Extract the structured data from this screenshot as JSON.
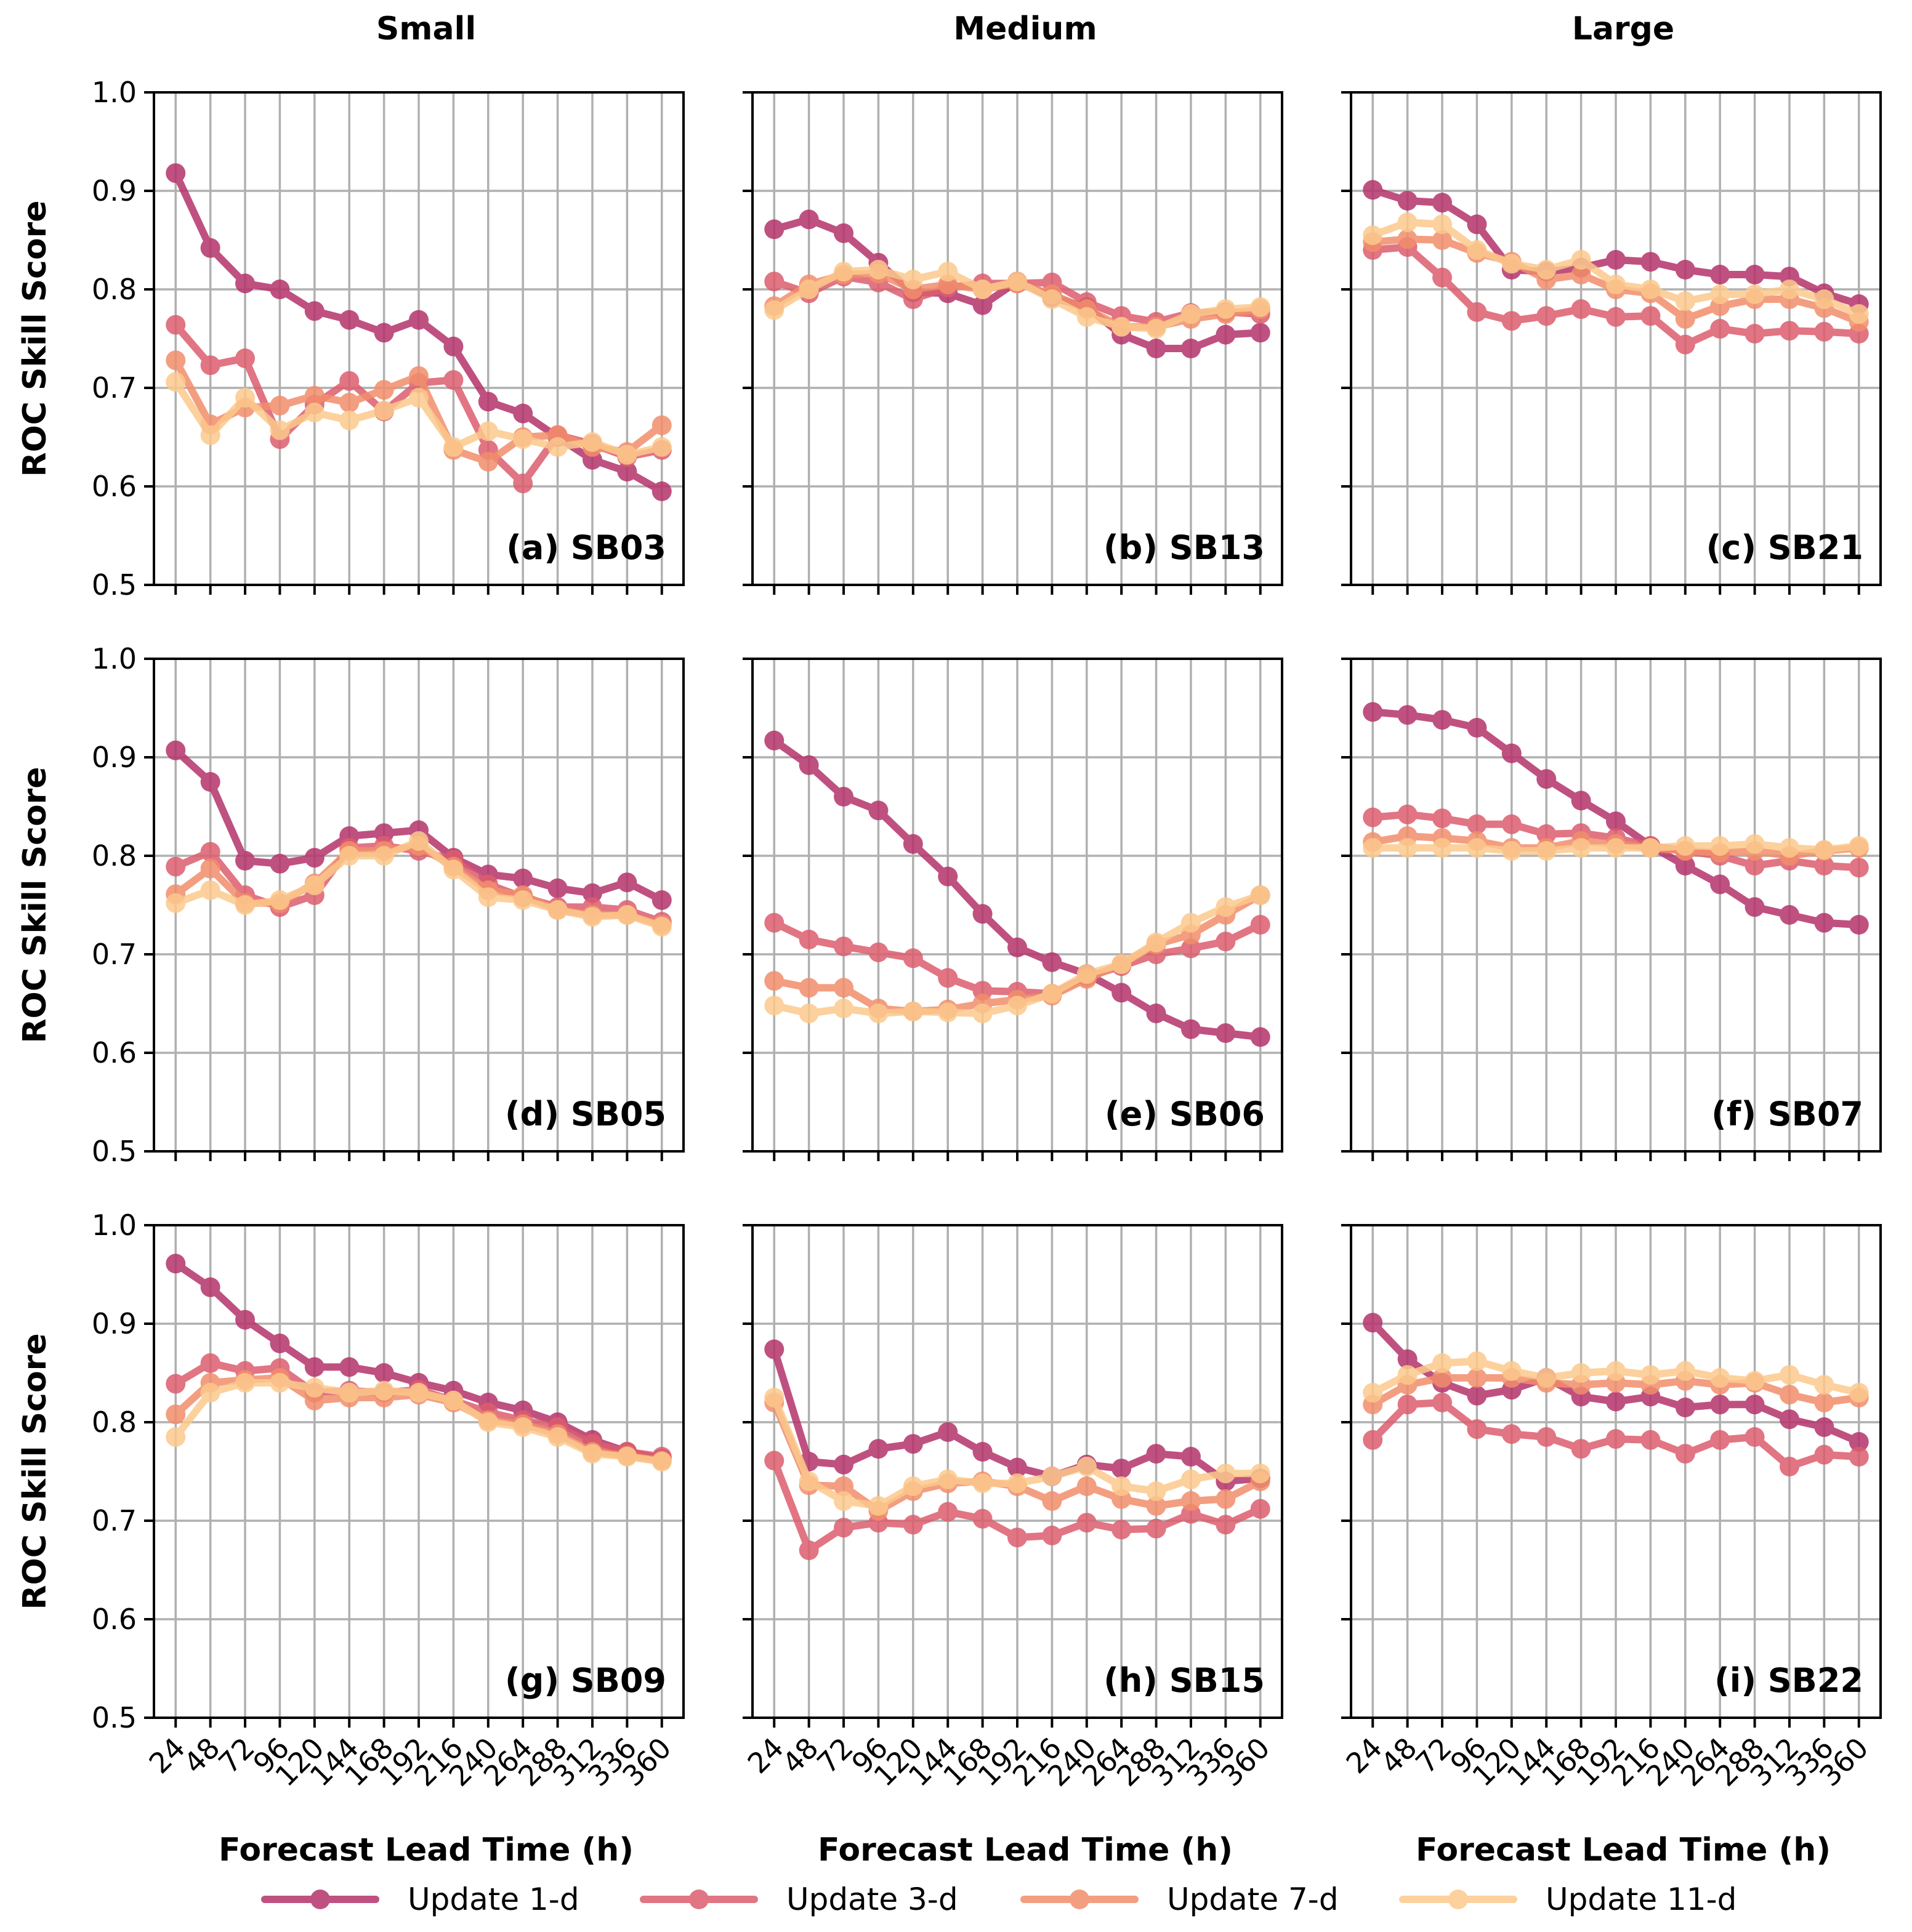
{
  "chart_data": {
    "type": "line",
    "column_titles": [
      "Small",
      "Medium",
      "Large"
    ],
    "xlabel": "Forecast Lead Time (h)",
    "ylabel": "ROC Skill Score",
    "ylim": [
      0.5,
      1.0
    ],
    "yticks": [
      "0.5",
      "0.6",
      "0.7",
      "0.8",
      "0.9",
      "1.0"
    ],
    "x": [
      24,
      48,
      72,
      96,
      120,
      144,
      168,
      192,
      216,
      240,
      264,
      288,
      312,
      336,
      360
    ],
    "grid": true,
    "legend_position": "bottom",
    "series_names": [
      "Update 1-d",
      "Update 3-d",
      "Update 7-d",
      "Update 11-d"
    ],
    "series_colors": [
      "#b5336a",
      "#dc5e6e",
      "#f28e6c",
      "#fcc98c"
    ],
    "panels": [
      {
        "label": "(a) SB03",
        "series": [
          [
            0.918,
            0.842,
            0.806,
            0.8,
            0.778,
            0.769,
            0.756,
            0.769,
            0.742,
            0.686,
            0.674,
            0.65,
            0.627,
            0.615,
            0.595
          ],
          [
            0.764,
            0.723,
            0.73,
            0.648,
            0.683,
            0.707,
            0.676,
            0.705,
            0.708,
            0.637,
            0.603,
            0.652,
            0.643,
            0.63,
            0.637
          ],
          [
            0.728,
            0.663,
            0.68,
            0.682,
            0.692,
            0.685,
            0.698,
            0.712,
            0.637,
            0.625,
            0.65,
            0.652,
            0.64,
            0.635,
            0.662
          ],
          [
            0.706,
            0.652,
            0.69,
            0.657,
            0.675,
            0.667,
            0.677,
            0.69,
            0.64,
            0.656,
            0.648,
            0.64,
            0.645,
            0.632,
            0.64
          ]
        ]
      },
      {
        "label": "(b) SB13",
        "series": [
          [
            0.861,
            0.871,
            0.857,
            0.827,
            0.797,
            0.796,
            0.784,
            0.808,
            0.792,
            0.782,
            0.754,
            0.74,
            0.74,
            0.754,
            0.756
          ],
          [
            0.808,
            0.796,
            0.813,
            0.807,
            0.79,
            0.802,
            0.806,
            0.806,
            0.807,
            0.787,
            0.773,
            0.767,
            0.776,
            0.777,
            0.775
          ],
          [
            0.783,
            0.805,
            0.815,
            0.816,
            0.8,
            0.805,
            0.8,
            0.806,
            0.795,
            0.78,
            0.762,
            0.762,
            0.77,
            0.775,
            0.78
          ],
          [
            0.779,
            0.8,
            0.818,
            0.82,
            0.81,
            0.818,
            0.8,
            0.808,
            0.79,
            0.772,
            0.762,
            0.76,
            0.775,
            0.78,
            0.782
          ]
        ]
      },
      {
        "label": "(c) SB21",
        "series": [
          [
            0.901,
            0.89,
            0.888,
            0.866,
            0.82,
            0.818,
            0.822,
            0.83,
            0.828,
            0.82,
            0.815,
            0.815,
            0.813,
            0.796,
            0.785
          ],
          [
            0.84,
            0.843,
            0.812,
            0.777,
            0.768,
            0.773,
            0.78,
            0.772,
            0.773,
            0.744,
            0.76,
            0.755,
            0.758,
            0.757,
            0.755
          ],
          [
            0.848,
            0.851,
            0.85,
            0.837,
            0.828,
            0.81,
            0.815,
            0.8,
            0.796,
            0.77,
            0.783,
            0.79,
            0.79,
            0.781,
            0.767
          ],
          [
            0.855,
            0.868,
            0.866,
            0.84,
            0.826,
            0.82,
            0.83,
            0.805,
            0.8,
            0.788,
            0.795,
            0.795,
            0.8,
            0.79,
            0.775
          ]
        ]
      },
      {
        "label": "(d) SB05",
        "series": [
          [
            0.907,
            0.875,
            0.795,
            0.792,
            0.798,
            0.82,
            0.823,
            0.826,
            0.798,
            0.781,
            0.777,
            0.767,
            0.762,
            0.773,
            0.755
          ],
          [
            0.789,
            0.804,
            0.76,
            0.748,
            0.76,
            0.808,
            0.81,
            0.805,
            0.796,
            0.771,
            0.758,
            0.748,
            0.748,
            0.745,
            0.733
          ],
          [
            0.761,
            0.787,
            0.752,
            0.752,
            0.772,
            0.805,
            0.805,
            0.81,
            0.789,
            0.765,
            0.76,
            0.745,
            0.74,
            0.74,
            0.73
          ],
          [
            0.752,
            0.765,
            0.75,
            0.755,
            0.77,
            0.8,
            0.8,
            0.815,
            0.786,
            0.758,
            0.755,
            0.745,
            0.738,
            0.74,
            0.728
          ]
        ]
      },
      {
        "label": "(e) SB06",
        "series": [
          [
            0.917,
            0.892,
            0.86,
            0.846,
            0.812,
            0.779,
            0.741,
            0.707,
            0.692,
            0.68,
            0.661,
            0.64,
            0.624,
            0.62,
            0.616
          ],
          [
            0.732,
            0.715,
            0.708,
            0.702,
            0.696,
            0.676,
            0.663,
            0.662,
            0.66,
            0.677,
            0.688,
            0.7,
            0.706,
            0.713,
            0.73
          ],
          [
            0.673,
            0.666,
            0.666,
            0.645,
            0.642,
            0.644,
            0.65,
            0.654,
            0.658,
            0.675,
            0.69,
            0.71,
            0.72,
            0.74,
            0.76
          ],
          [
            0.648,
            0.64,
            0.645,
            0.64,
            0.642,
            0.641,
            0.64,
            0.648,
            0.66,
            0.68,
            0.69,
            0.712,
            0.732,
            0.748,
            0.76
          ]
        ]
      },
      {
        "label": "(f) SB07",
        "series": [
          [
            0.946,
            0.943,
            0.938,
            0.93,
            0.904,
            0.878,
            0.856,
            0.835,
            0.81,
            0.79,
            0.771,
            0.748,
            0.74,
            0.732,
            0.73
          ],
          [
            0.839,
            0.842,
            0.838,
            0.832,
            0.832,
            0.822,
            0.823,
            0.818,
            0.81,
            0.805,
            0.8,
            0.79,
            0.795,
            0.79,
            0.788
          ],
          [
            0.814,
            0.82,
            0.818,
            0.815,
            0.808,
            0.808,
            0.815,
            0.812,
            0.808,
            0.805,
            0.803,
            0.805,
            0.8,
            0.805,
            0.808
          ],
          [
            0.808,
            0.808,
            0.808,
            0.808,
            0.805,
            0.805,
            0.808,
            0.808,
            0.808,
            0.81,
            0.81,
            0.812,
            0.808,
            0.806,
            0.81
          ]
        ]
      },
      {
        "label": "(g) SB09",
        "series": [
          [
            0.961,
            0.937,
            0.904,
            0.88,
            0.856,
            0.856,
            0.85,
            0.84,
            0.832,
            0.82,
            0.812,
            0.8,
            0.782,
            0.77,
            0.763
          ],
          [
            0.839,
            0.86,
            0.852,
            0.855,
            0.83,
            0.832,
            0.83,
            0.833,
            0.822,
            0.81,
            0.802,
            0.795,
            0.778,
            0.77,
            0.765
          ],
          [
            0.808,
            0.84,
            0.843,
            0.845,
            0.822,
            0.825,
            0.825,
            0.828,
            0.82,
            0.802,
            0.798,
            0.788,
            0.77,
            0.766,
            0.761
          ],
          [
            0.785,
            0.83,
            0.84,
            0.84,
            0.835,
            0.83,
            0.832,
            0.83,
            0.822,
            0.8,
            0.795,
            0.785,
            0.768,
            0.765,
            0.76
          ]
        ]
      },
      {
        "label": "(h) SB15",
        "series": [
          [
            0.874,
            0.76,
            0.757,
            0.773,
            0.778,
            0.79,
            0.77,
            0.754,
            0.745,
            0.757,
            0.753,
            0.768,
            0.765,
            0.74,
            0.743
          ],
          [
            0.761,
            0.67,
            0.693,
            0.698,
            0.696,
            0.709,
            0.702,
            0.683,
            0.685,
            0.698,
            0.691,
            0.692,
            0.707,
            0.696,
            0.712
          ],
          [
            0.82,
            0.736,
            0.735,
            0.71,
            0.73,
            0.738,
            0.74,
            0.735,
            0.72,
            0.735,
            0.722,
            0.715,
            0.72,
            0.722,
            0.74
          ],
          [
            0.825,
            0.74,
            0.72,
            0.715,
            0.735,
            0.742,
            0.738,
            0.738,
            0.745,
            0.755,
            0.735,
            0.73,
            0.742,
            0.748,
            0.748
          ]
        ]
      },
      {
        "label": "(i) SB22",
        "series": [
          [
            0.901,
            0.864,
            0.84,
            0.827,
            0.833,
            0.845,
            0.826,
            0.821,
            0.826,
            0.815,
            0.818,
            0.818,
            0.803,
            0.795,
            0.78
          ],
          [
            0.782,
            0.818,
            0.82,
            0.793,
            0.788,
            0.785,
            0.773,
            0.783,
            0.782,
            0.768,
            0.782,
            0.785,
            0.755,
            0.767,
            0.765
          ],
          [
            0.818,
            0.838,
            0.845,
            0.845,
            0.845,
            0.84,
            0.838,
            0.84,
            0.838,
            0.842,
            0.838,
            0.84,
            0.828,
            0.82,
            0.825
          ],
          [
            0.83,
            0.848,
            0.86,
            0.862,
            0.852,
            0.845,
            0.85,
            0.852,
            0.848,
            0.852,
            0.845,
            0.842,
            0.848,
            0.838,
            0.83
          ]
        ]
      }
    ]
  }
}
